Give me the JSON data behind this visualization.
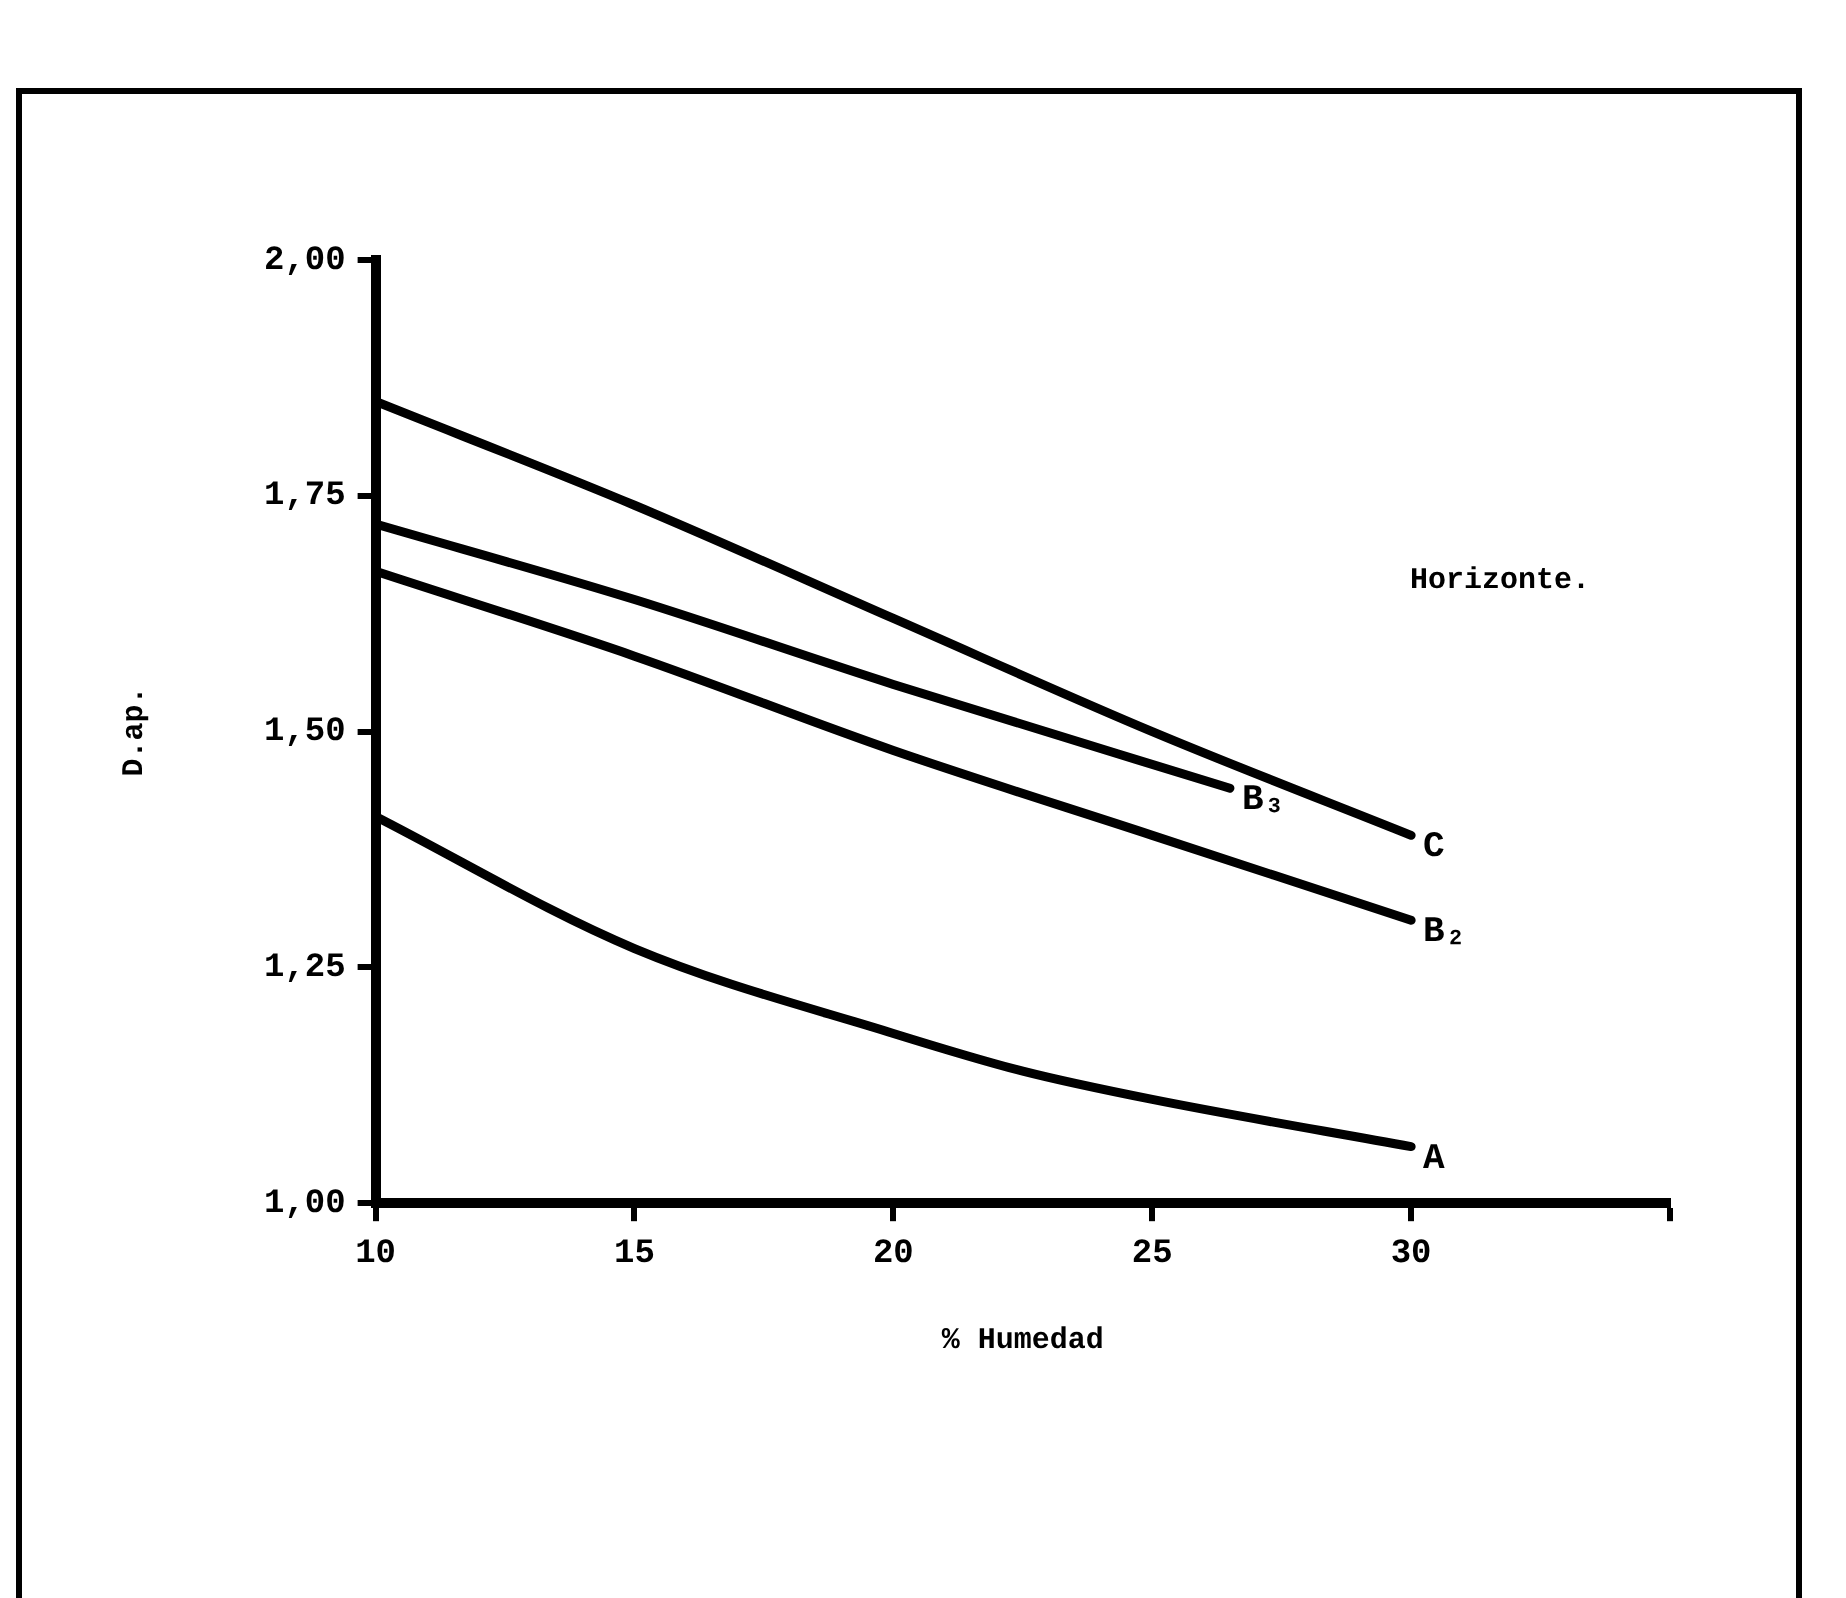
{
  "chart_data": {
    "type": "line",
    "xlabel": "% Humedad",
    "ylabel": "D.ap.",
    "annotations": [
      "Horizonte."
    ],
    "xlim": [
      10,
      35
    ],
    "xticks": [
      10,
      15,
      20,
      25,
      30,
      {
        "value": 35,
        "label": null
      }
    ],
    "ylim": [
      1,
      2
    ],
    "yticks": [
      {
        "value": 1,
        "label": "1,00"
      },
      {
        "value": 1.25,
        "label": "1,25"
      },
      {
        "value": 1.5,
        "label": "1,50"
      },
      {
        "value": 1.75,
        "label": "1,75"
      },
      {
        "value": 2,
        "label": "2,00"
      }
    ],
    "grid": false,
    "legend": false,
    "marker": "none",
    "line_style": "solid",
    "series": [
      {
        "name": "C",
        "color": "#000000",
        "x": [
          10,
          15,
          20,
          25,
          30
        ],
        "values": [
          1.85,
          1.74,
          1.62,
          1.5,
          1.39
        ]
      },
      {
        "name": "B₃",
        "color": "#000000",
        "x": [
          10,
          15,
          20,
          26.5
        ],
        "values": [
          1.72,
          1.64,
          1.55,
          1.44
        ]
      },
      {
        "name": "B₂",
        "color": "#000000",
        "x": [
          10,
          15,
          20,
          25,
          30
        ],
        "values": [
          1.67,
          1.58,
          1.48,
          1.39,
          1.3
        ]
      },
      {
        "name": "A",
        "color": "#000000",
        "x": [
          10,
          15,
          20,
          22.5,
          25,
          30
        ],
        "values": [
          1.41,
          1.27,
          1.18,
          1.14,
          1.11,
          1.06
        ]
      }
    ]
  }
}
